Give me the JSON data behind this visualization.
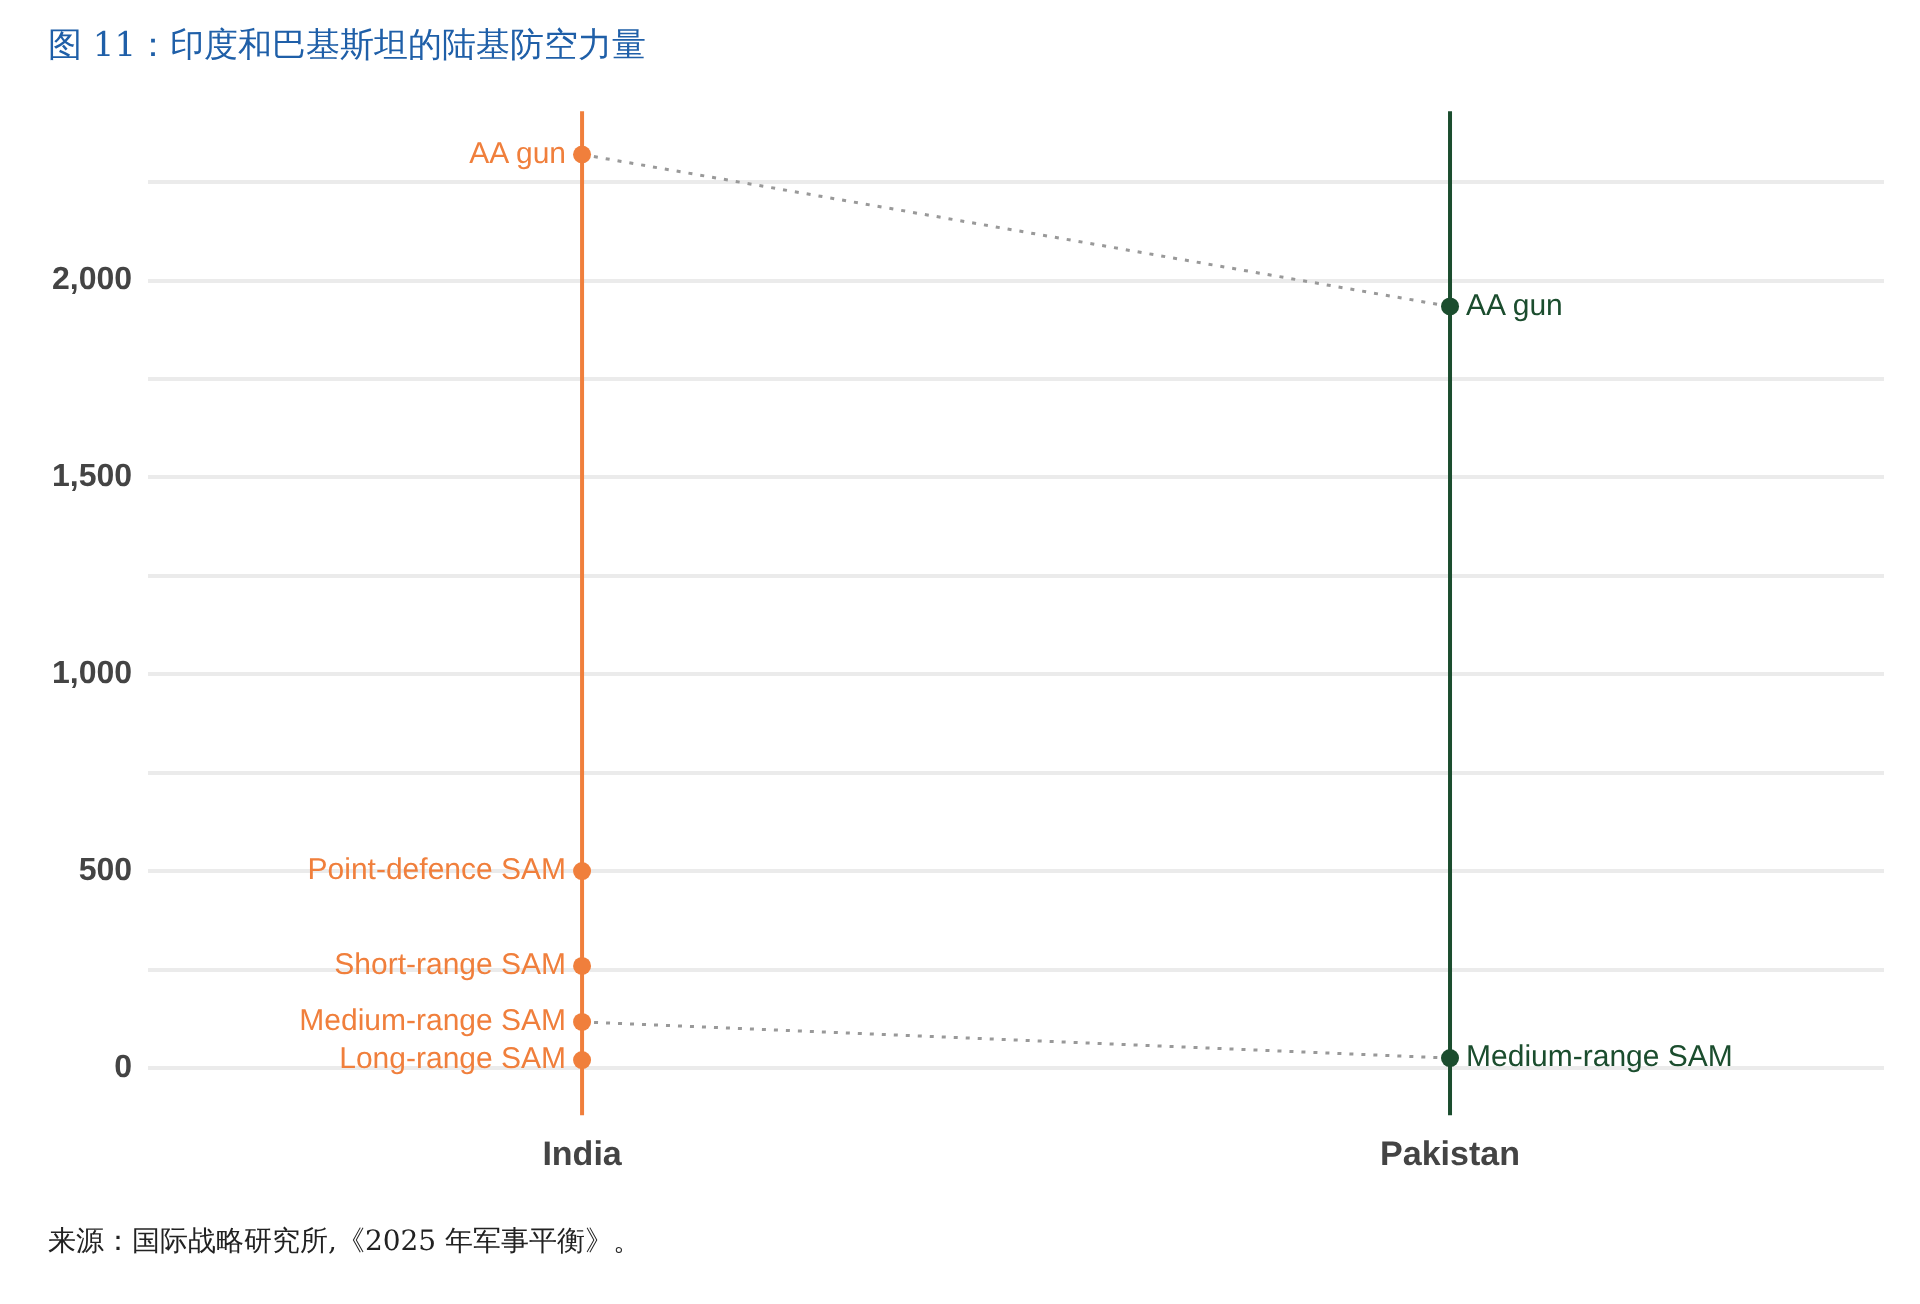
{
  "chart_data": {
    "type": "line",
    "title": "图 11：印度和巴基斯坦的陆基防空力量",
    "categories": [
      "India",
      "Pakistan"
    ],
    "series": [
      {
        "name": "AA gun",
        "color": "#999999",
        "colors": [
          "#f07f3c",
          "#1b4d2e"
        ],
        "values": [
          2320,
          1934
        ]
      },
      {
        "name": "Point-defence SAM",
        "color": "#999999",
        "colors": [
          "#f07f3c",
          "#1b4d2e"
        ],
        "values": [
          500,
          null
        ]
      },
      {
        "name": "Short-range SAM",
        "color": "#999999",
        "colors": [
          "#f07f3c",
          "#1b4d2e"
        ],
        "values": [
          259,
          null
        ]
      },
      {
        "name": "Medium-range SAM",
        "color": "#999999",
        "colors": [
          "#f07f3c",
          "#1b4d2e"
        ],
        "values": [
          117,
          25
        ]
      },
      {
        "name": "Long-range SAM",
        "color": "#999999",
        "colors": [
          "#f07f3c",
          "#1b4d2e"
        ],
        "values": [
          20,
          null
        ]
      }
    ],
    "ylim": [
      -120,
      2430
    ],
    "yticks": [
      0,
      {
        "value": 250,
        "label": null
      },
      {
        "value": 500,
        "label": "500"
      },
      {
        "value": 750,
        "label": null
      },
      {
        "value": 1000,
        "label": "1,000"
      },
      {
        "value": 1250,
        "label": null
      },
      {
        "value": 1500,
        "label": "1,500"
      },
      {
        "value": 1750,
        "label": null
      },
      {
        "value": 2000,
        "label": "2,000"
      },
      {
        "value": 2250,
        "label": null
      }
    ],
    "ref_lines": [
      {
        "axis": "x",
        "value": "India",
        "color": "#f07f3c"
      },
      {
        "axis": "x",
        "value": "Pakistan",
        "color": "#1b4d2e"
      }
    ],
    "grid": "y",
    "legend": false,
    "marker": "circle",
    "line_style": "dotted",
    "annotations": [
      "来源：国际战略研究所,《2025 年军事平衡》。"
    ]
  }
}
